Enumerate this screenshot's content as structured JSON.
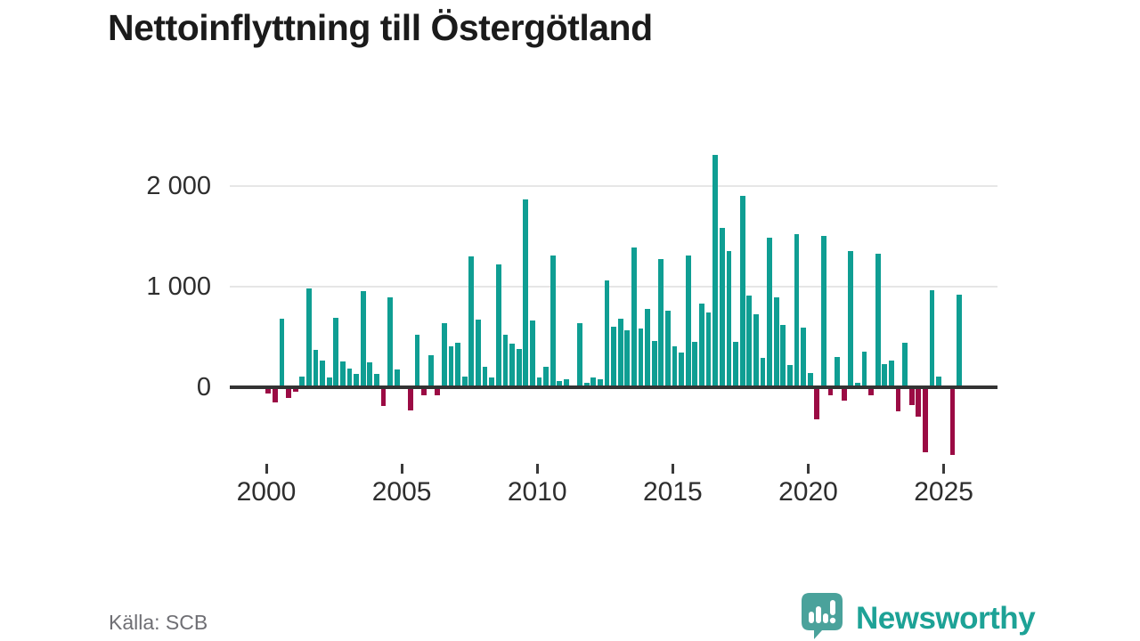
{
  "header": {
    "title": "Nettoinflyttning till Östergötland"
  },
  "footer": {
    "source": "Källa: SCB",
    "brand": "Newsworthy"
  },
  "colors": {
    "positive_bar": "#0f9e93",
    "negative_bar": "#9b0b44",
    "axis": "#333333",
    "gridline": "#e6e6e6",
    "brand_teal": "#1da296",
    "logo_bubble": "#4aa29b"
  },
  "chart_data": {
    "type": "bar",
    "title": "Nettoinflyttning till Östergötland",
    "xlabel": "",
    "ylabel": "",
    "grid": "horizontal",
    "ylim": [
      -800,
      2450
    ],
    "y_ticks": [
      {
        "label": "0",
        "value": 0
      },
      {
        "label": "1 000",
        "value": 1000
      },
      {
        "label": "2 000",
        "value": 2000
      }
    ],
    "x_tick_labels": [
      "2000",
      "2005",
      "2010",
      "2015",
      "2020",
      "2025"
    ],
    "frequency": "quarterly",
    "categories": [
      "2000Q1",
      "2000Q2",
      "2000Q3",
      "2000Q4",
      "2001Q1",
      "2001Q2",
      "2001Q3",
      "2001Q4",
      "2002Q1",
      "2002Q2",
      "2002Q3",
      "2002Q4",
      "2003Q1",
      "2003Q2",
      "2003Q3",
      "2003Q4",
      "2004Q1",
      "2004Q2",
      "2004Q3",
      "2004Q4",
      "2005Q1",
      "2005Q2",
      "2005Q3",
      "2005Q4",
      "2006Q1",
      "2006Q2",
      "2006Q3",
      "2006Q4",
      "2007Q1",
      "2007Q2",
      "2007Q3",
      "2007Q4",
      "2008Q1",
      "2008Q2",
      "2008Q3",
      "2008Q4",
      "2009Q1",
      "2009Q2",
      "2009Q3",
      "2009Q4",
      "2010Q1",
      "2010Q2",
      "2010Q3",
      "2010Q4",
      "2011Q1",
      "2011Q2",
      "2011Q3",
      "2011Q4",
      "2012Q1",
      "2012Q2",
      "2012Q3",
      "2012Q4",
      "2013Q1",
      "2013Q2",
      "2013Q3",
      "2013Q4",
      "2014Q1",
      "2014Q2",
      "2014Q3",
      "2014Q4",
      "2015Q1",
      "2015Q2",
      "2015Q3",
      "2015Q4",
      "2016Q1",
      "2016Q2",
      "2016Q3",
      "2016Q4",
      "2017Q1",
      "2017Q2",
      "2017Q3",
      "2017Q4",
      "2018Q1",
      "2018Q2",
      "2018Q3",
      "2018Q4",
      "2019Q1",
      "2019Q2",
      "2019Q3",
      "2019Q4",
      "2020Q1",
      "2020Q2",
      "2020Q3",
      "2020Q4",
      "2021Q1",
      "2021Q2",
      "2021Q3",
      "2021Q4",
      "2022Q1",
      "2022Q2",
      "2022Q3",
      "2022Q4",
      "2023Q1",
      "2023Q2",
      "2023Q3",
      "2023Q4",
      "2024Q1",
      "2024Q2",
      "2024Q3",
      "2024Q4",
      "2025Q1",
      "2025Q2",
      "2025Q3"
    ],
    "values": [
      -40,
      -130,
      680,
      -90,
      -30,
      110,
      980,
      370,
      265,
      100,
      690,
      255,
      185,
      130,
      955,
      250,
      130,
      -170,
      890,
      180,
      0,
      -210,
      525,
      -60,
      320,
      -65,
      640,
      410,
      445,
      110,
      1300,
      670,
      205,
      100,
      1220,
      525,
      430,
      380,
      1865,
      665,
      100,
      200,
      1305,
      65,
      80,
      0,
      640,
      45,
      95,
      80,
      1065,
      600,
      680,
      570,
      1390,
      585,
      775,
      460,
      1270,
      760,
      410,
      345,
      1310,
      450,
      835,
      740,
      2310,
      1580,
      1350,
      450,
      1900,
      915,
      725,
      290,
      1485,
      895,
      615,
      225,
      1520,
      590,
      140,
      -305,
      1500,
      -65,
      305,
      -115,
      1350,
      45,
      350,
      -65,
      1325,
      230,
      265,
      -225,
      440,
      -160,
      -270,
      -625,
      960,
      105,
      20,
      -655,
      920
    ],
    "positive_color": "#0f9e93",
    "negative_color": "#9b0b44",
    "legend": "none"
  }
}
